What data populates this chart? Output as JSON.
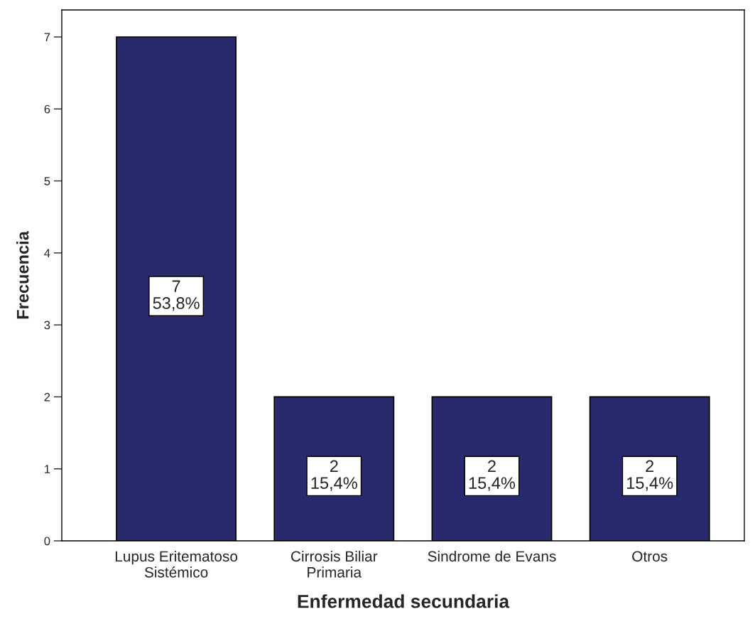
{
  "chart_data": {
    "type": "bar",
    "xlabel": "Enfermedad secundaria",
    "ylabel": "Frecuencia",
    "categories": [
      "Lupus Eritematoso\nSistémico",
      "Cirrosis Biliar\nPrimaria",
      "Sindrome de Evans",
      "Otros"
    ],
    "values": [
      7,
      2,
      2,
      2
    ],
    "color": "#29296e",
    "value_labels": [
      "7\n53,8%",
      "2\n15,4%",
      "2\n15,4%",
      "2\n15,4%"
    ],
    "ylim": [
      0,
      7.375
    ],
    "yticks": [
      0,
      1,
      2,
      3,
      4,
      5,
      6,
      7
    ],
    "grid": false
  }
}
